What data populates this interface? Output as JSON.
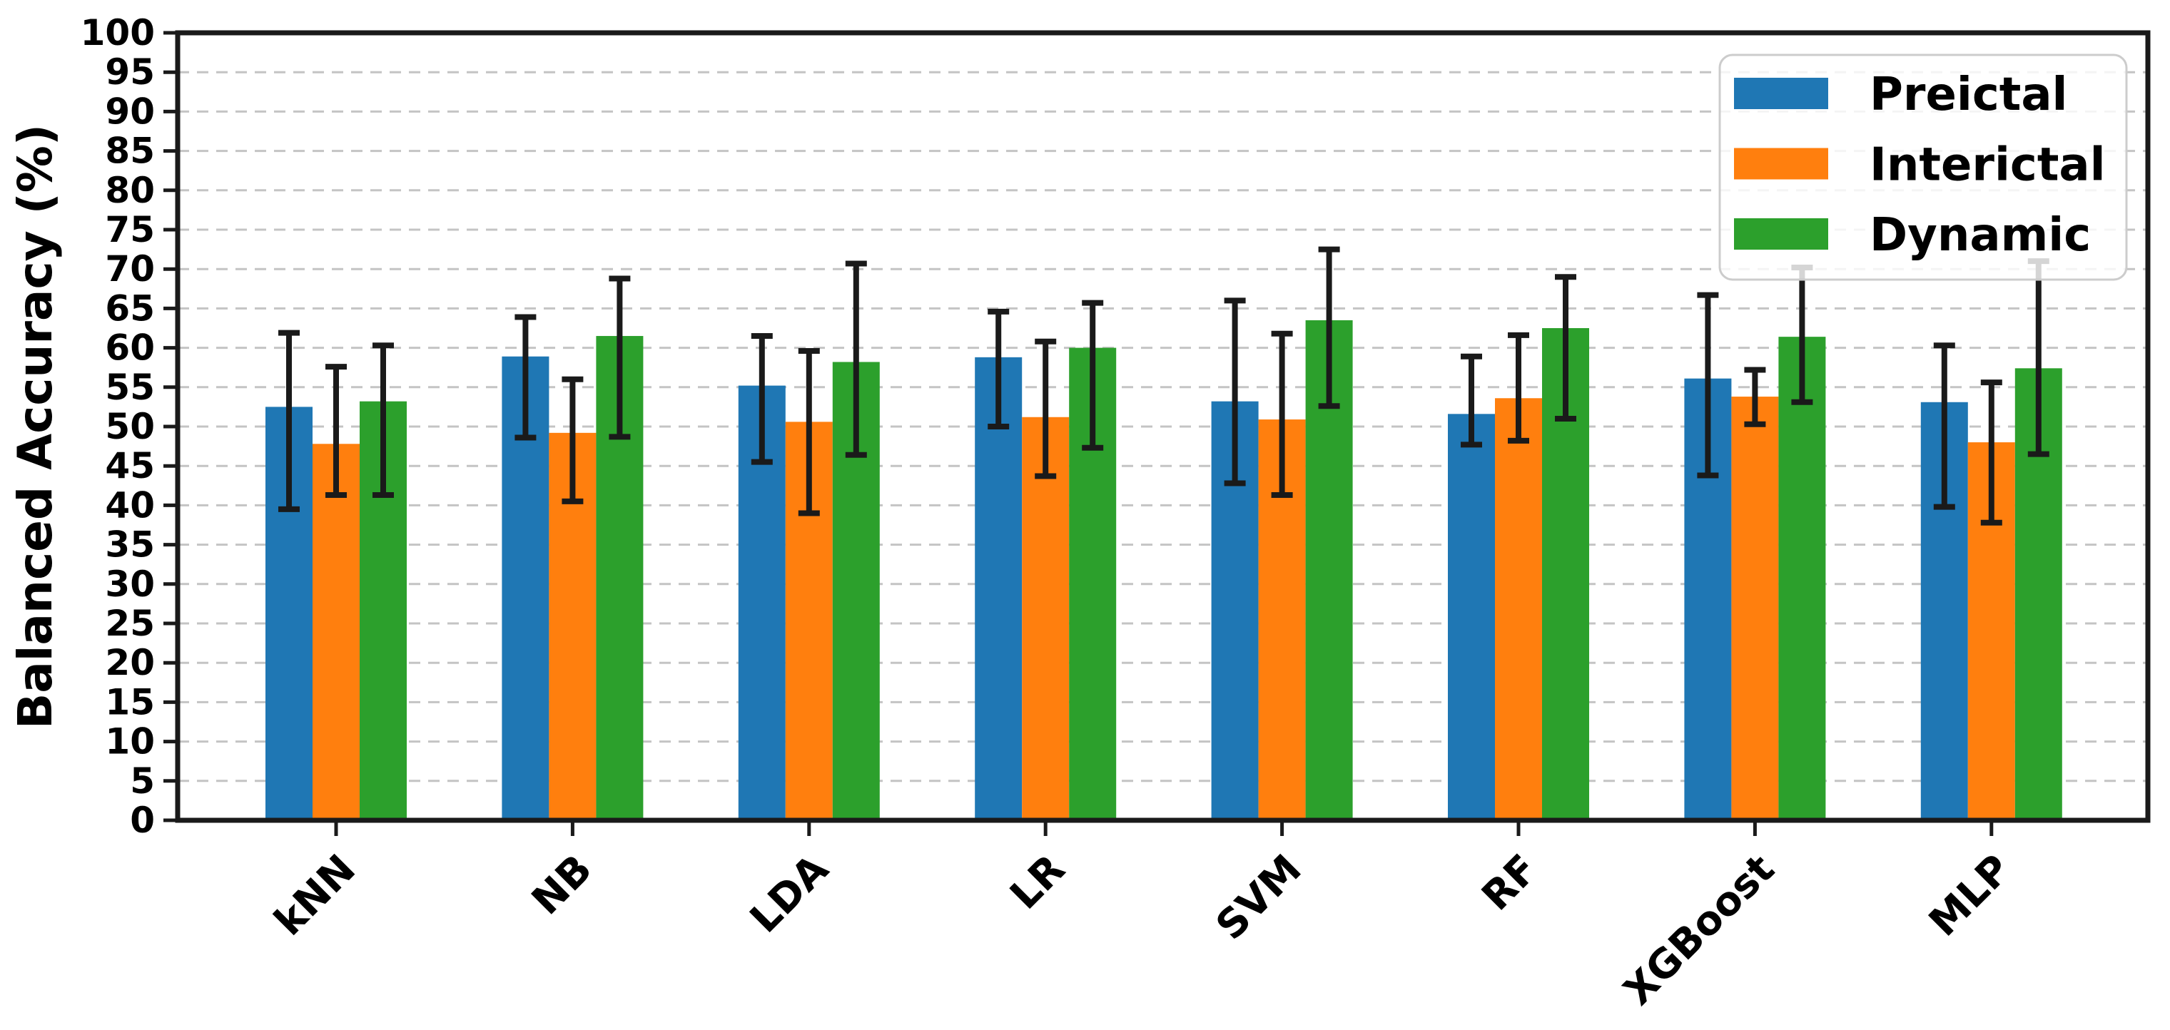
{
  "chart_data": {
    "type": "bar",
    "title": "",
    "xlabel": "",
    "ylabel": "Balanced Accuracy (%)",
    "ylim": [
      0,
      100
    ],
    "ytick_step": 5,
    "grid": "horizontal dashed gridlines every 5 units",
    "legend_position": "upper right",
    "background_color": "#ffffff",
    "axis_color": "#1a1a1a",
    "gridline_color": "#c4c4c4",
    "errorbar_color": "#1a1a1a",
    "categories": [
      "kNN",
      "NB",
      "LDA",
      "LR",
      "SVM",
      "RF",
      "XGBoost",
      "MLP"
    ],
    "series": [
      {
        "name": "Preictal",
        "color": "#1f77b4",
        "values": [
          52.5,
          58.9,
          55.2,
          58.8,
          53.2,
          51.6,
          56.1,
          53.1
        ],
        "error_low": [
          39.5,
          48.6,
          45.5,
          50.0,
          42.8,
          47.7,
          43.8,
          39.8
        ],
        "error_high": [
          61.9,
          63.9,
          61.5,
          64.6,
          66.0,
          58.9,
          66.7,
          60.3
        ]
      },
      {
        "name": "Interictal",
        "color": "#ff7f0e",
        "values": [
          47.8,
          49.2,
          50.6,
          51.2,
          50.9,
          53.6,
          53.8,
          48.0
        ],
        "error_low": [
          41.3,
          40.5,
          39.0,
          43.7,
          41.3,
          48.2,
          50.3,
          37.8
        ],
        "error_high": [
          57.6,
          56.0,
          59.6,
          60.8,
          61.8,
          61.6,
          57.2,
          55.6
        ]
      },
      {
        "name": "Dynamic",
        "color": "#2ca02c",
        "values": [
          53.2,
          61.5,
          58.2,
          60.0,
          63.5,
          62.5,
          61.4,
          57.4
        ],
        "error_low": [
          41.3,
          48.7,
          46.4,
          47.3,
          52.6,
          51.0,
          53.1,
          46.5
        ],
        "error_high": [
          60.3,
          68.8,
          70.7,
          65.7,
          72.5,
          69.0,
          70.2,
          71.0
        ]
      }
    ]
  }
}
